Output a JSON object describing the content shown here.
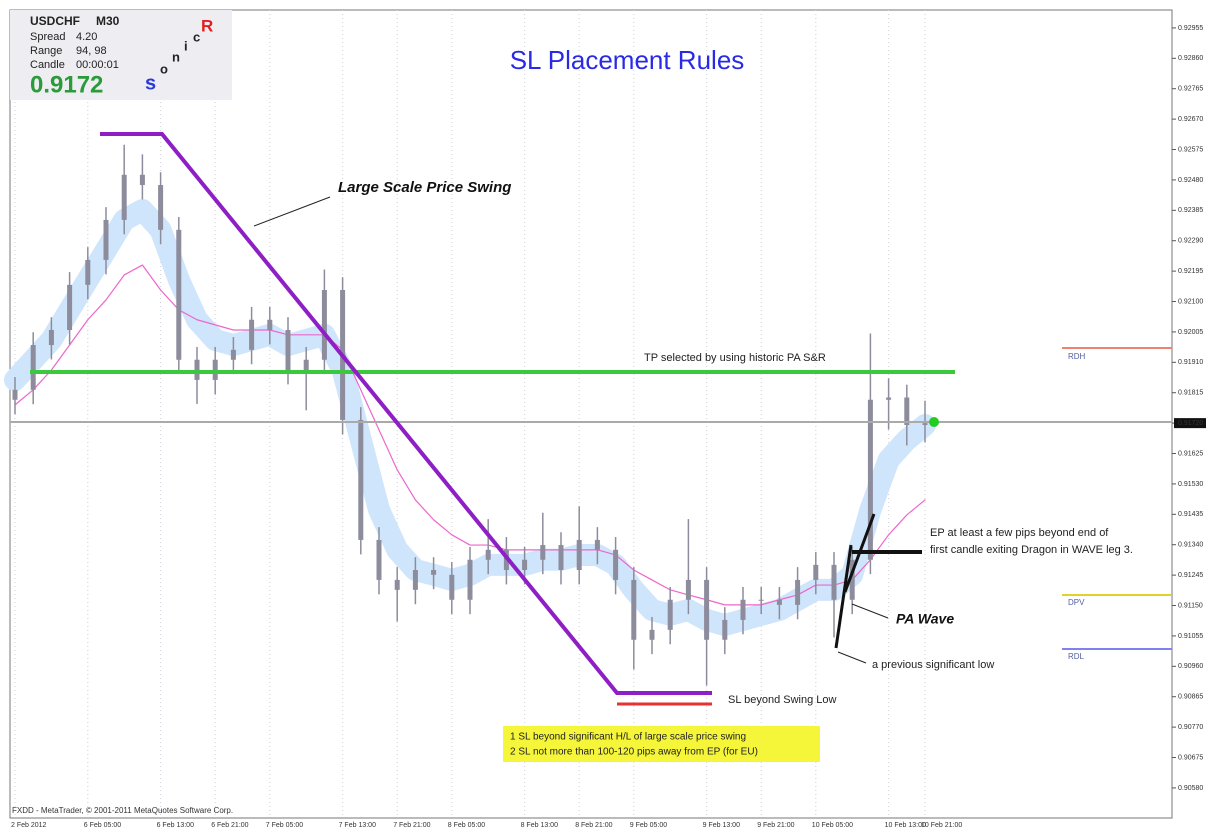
{
  "chart_data": {
    "type": "candlestick",
    "title": "SL Placement Rules",
    "categories": [
      "2 Feb 2012",
      null,
      null,
      null,
      "6 Feb 05:00",
      null,
      null,
      null,
      "6 Feb 13:00",
      null,
      null,
      "6 Feb 21:00",
      null,
      null,
      "7 Feb 05:00",
      null,
      null,
      null,
      "7 Feb 13:00",
      null,
      null,
      "7 Feb 21:00",
      null,
      null,
      "8 Feb 05:00",
      null,
      null,
      null,
      "8 Feb 13:00",
      null,
      null,
      "8 Feb 21:00",
      null,
      null,
      "9 Feb 05:00",
      null,
      null,
      null,
      "9 Feb 13:00",
      null,
      null,
      "9 Feb 21:00",
      null,
      null,
      "10 Feb 05:00",
      null,
      null,
      null,
      "10 Feb 13:00",
      null,
      "10 Feb 21:00"
    ],
    "open": [
      0.91793,
      0.91824,
      0.91964,
      0.92011,
      0.92152,
      0.9223,
      0.92355,
      0.92496,
      0.92464,
      0.92324,
      0.91918,
      0.91855,
      0.91918,
      0.91949,
      0.92043,
      0.92011,
      0.91886,
      0.91918,
      0.92136,
      0.9173,
      0.91355,
      0.9123,
      0.91199,
      0.91261,
      0.91246,
      0.91168,
      0.91293,
      0.91324,
      0.91261,
      0.91293,
      0.91339,
      0.91261,
      0.91355,
      0.91324,
      0.9123,
      0.91043,
      0.91074,
      0.91168,
      0.9123,
      0.91043,
      0.91105,
      0.91168,
      0.91168,
      0.91152,
      0.9123,
      0.91277,
      0.91168,
      0.91293,
      0.91793,
      0.918,
      0.91714
    ],
    "high": [
      0.91864,
      0.92004,
      0.92051,
      0.92192,
      0.9227,
      0.92395,
      0.9259,
      0.9256,
      0.92504,
      0.92364,
      0.91958,
      0.91958,
      0.91989,
      0.92083,
      0.92083,
      0.92051,
      0.91958,
      0.922,
      0.92176,
      0.9177,
      0.91395,
      0.9127,
      0.91301,
      0.91301,
      0.91286,
      0.91333,
      0.9142,
      0.91364,
      0.91333,
      0.9144,
      0.91379,
      0.9146,
      0.91395,
      0.91364,
      0.9127,
      0.91114,
      0.91208,
      0.9142,
      0.9127,
      0.91145,
      0.91208,
      0.91208,
      0.91208,
      0.9127,
      0.91317,
      0.91317,
      0.91333,
      0.92,
      0.9186,
      0.9184,
      0.9179
    ],
    "low": [
      0.91748,
      0.91779,
      0.91919,
      0.91966,
      0.92107,
      0.92185,
      0.9231,
      0.92419,
      0.92279,
      0.91873,
      0.9178,
      0.9181,
      0.91873,
      0.91904,
      0.91966,
      0.91841,
      0.9176,
      0.91873,
      0.91685,
      0.9131,
      0.91185,
      0.911,
      0.91154,
      0.91201,
      0.91123,
      0.91123,
      0.91248,
      0.91216,
      0.91216,
      0.91248,
      0.91216,
      0.91216,
      0.91279,
      0.91185,
      0.9095,
      0.90998,
      0.91029,
      0.91123,
      0.909,
      0.90998,
      0.9106,
      0.91123,
      0.91107,
      0.91107,
      0.91185,
      0.9105,
      0.91123,
      0.91248,
      0.917,
      0.9165,
      0.9166
    ],
    "close": [
      0.91824,
      0.91964,
      0.92011,
      0.92152,
      0.9223,
      0.92355,
      0.92496,
      0.92464,
      0.92324,
      0.91918,
      0.91855,
      0.91918,
      0.91949,
      0.92043,
      0.92011,
      0.91886,
      0.91918,
      0.92136,
      0.9173,
      0.91355,
      0.9123,
      0.91199,
      0.91261,
      0.91246,
      0.91168,
      0.91293,
      0.91324,
      0.91261,
      0.91293,
      0.91339,
      0.91261,
      0.91355,
      0.91324,
      0.9123,
      0.91043,
      0.91074,
      0.91168,
      0.9123,
      0.91043,
      0.91105,
      0.91168,
      0.91168,
      0.91152,
      0.9123,
      0.91277,
      0.91168,
      0.91293,
      0.91793,
      0.918,
      0.91714,
      0.9172
    ],
    "color": "#8c8c9c",
    "series": [
      {
        "color": "#cfe5fb",
        "values": [
          0.91855,
          0.91918,
          0.9198,
          0.92074,
          0.92168,
          0.92261,
          0.92355,
          0.92386,
          0.92324,
          0.92168,
          0.92043,
          0.9198,
          0.91964,
          0.9198,
          0.91996,
          0.91964,
          0.9198,
          0.91996,
          0.91886,
          0.91668,
          0.91449,
          0.91324,
          0.91261,
          0.91246,
          0.9123,
          0.91246,
          0.91277,
          0.91277,
          0.91277,
          0.91293,
          0.91293,
          0.91308,
          0.91308,
          0.91277,
          0.91199,
          0.91136,
          0.91121,
          0.91136,
          0.91105,
          0.91089,
          0.91105,
          0.91121,
          0.91136,
          0.91168,
          0.91199,
          0.91199,
          0.91246,
          0.91449,
          0.91605,
          0.91668,
          0.91714
        ]
      },
      {
        "color": "#ee66cc",
        "values": [
          0.91777,
          0.91824,
          0.91886,
          0.91964,
          0.92043,
          0.92105,
          0.92183,
          0.92214,
          0.92136,
          0.92074,
          0.92043,
          0.92027,
          0.92011,
          0.92011,
          0.92011,
          0.91996,
          0.91996,
          0.91996,
          0.91949,
          0.91824,
          0.91699,
          0.91574,
          0.9148,
          0.91418,
          0.91371,
          0.91339,
          0.91339,
          0.91324,
          0.91324,
          0.91324,
          0.91324,
          0.91324,
          0.91324,
          0.91308,
          0.91261,
          0.9123,
          0.91199,
          0.91183,
          0.91168,
          0.91152,
          0.91152,
          0.91152,
          0.91168,
          0.91183,
          0.91214,
          0.91214,
          0.9123,
          0.91293,
          0.91371,
          0.91433,
          0.9148
        ]
      }
    ],
    "ylim": [
      0.90486,
      0.93011
    ],
    "yticks": [
      0.92955,
      {
        "value": 0.9286,
        "label": "0.92860"
      },
      0.92765,
      {
        "value": 0.9267,
        "label": "0.92670"
      },
      0.92575,
      {
        "value": 0.9248,
        "label": "0.92480"
      },
      0.92385,
      {
        "value": 0.9229,
        "label": "0.92290"
      },
      0.92195,
      {
        "value": 0.921,
        "label": "0.92100"
      },
      0.92005,
      {
        "value": 0.9191,
        "label": "0.91910"
      },
      0.91815,
      {
        "value": 0.9172,
        "label": "0.91720"
      },
      0.91625,
      {
        "value": 0.9153,
        "label": "0.91530"
      },
      0.91435,
      {
        "value": 0.9134,
        "label": "0.91340"
      },
      0.91245,
      {
        "value": 0.9115,
        "label": "0.91150"
      },
      0.91055,
      {
        "value": 0.9096,
        "label": "0.90960"
      },
      0.90865,
      {
        "value": 0.9077,
        "label": "0.90770"
      },
      0.90675,
      {
        "value": 0.9058,
        "label": "0.90580"
      }
    ],
    "grid": true,
    "annotations": {
      "swing": "Large Scale Price Swing",
      "tp": "TP selected by using historic PA S&R",
      "sl": "SL beyond Swing Low",
      "rules": [
        "1  SL beyond significant H/L of large scale price swing",
        "2  SL not more than 100-120 pips away from EP (for EU)"
      ],
      "ep": [
        "EP at least a few pips beyond end of",
        "first candle exiting Dragon in WAVE leg 3."
      ],
      "wave": "PA Wave",
      "low": "a previous significant low",
      "levels": [
        "RDH",
        "DPV",
        "RDL"
      ]
    }
  },
  "terminal": {
    "symbol": "USDCHF",
    "timeframe": "M30",
    "spread_label": "Spread",
    "spread": "4.20",
    "range_label": "Range",
    "range": "94, 98",
    "candle_label": "Candle",
    "candle": "00:00:01",
    "bid": 0.9172,
    "logo": [
      "s",
      "o",
      "n",
      "i",
      "c",
      "R"
    ],
    "footer": "FXDD - MetaTrader, © 2001-2011 MetaQuotes Software Corp."
  }
}
